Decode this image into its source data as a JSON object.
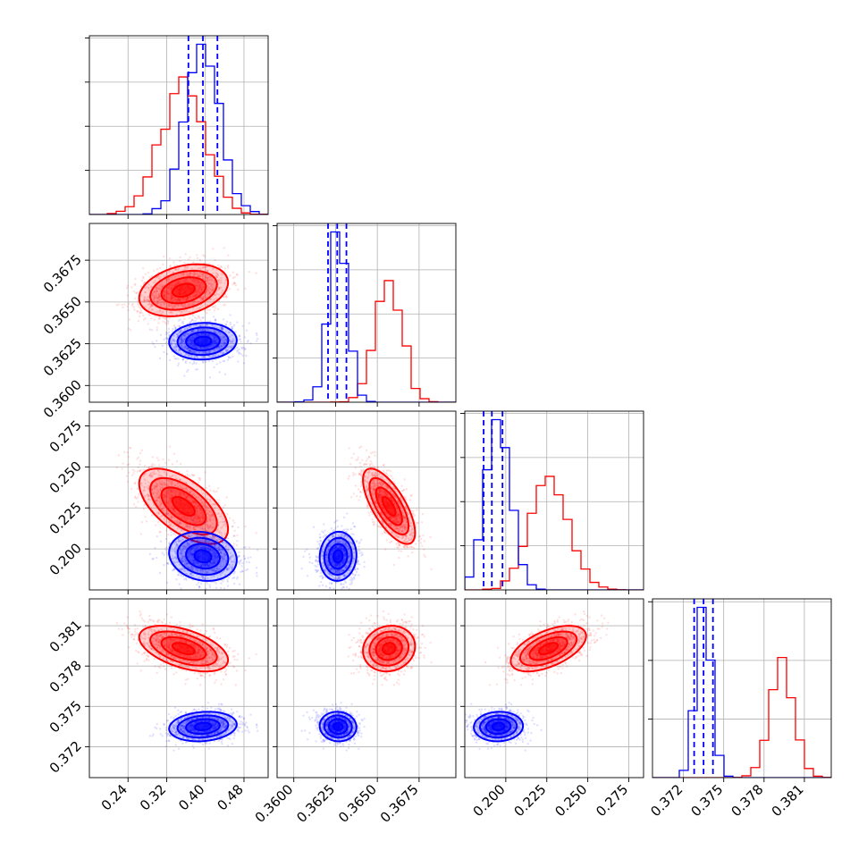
{
  "chart_data": {
    "type": "corner",
    "grid": true,
    "colors": {
      "red": "#ff0000",
      "blue": "#0000ff"
    },
    "parameters": [
      {
        "range": [
          0.16,
          0.53
        ],
        "ticks": [
          0.24,
          0.32,
          0.4,
          0.48
        ],
        "tick_labels": [
          "0.24",
          "0.32",
          "0.40",
          "0.48"
        ]
      },
      {
        "range": [
          0.359,
          0.3697
        ],
        "ticks": [
          0.36,
          0.3625,
          0.365,
          0.3675
        ],
        "tick_labels": [
          "0.3600",
          "0.3625",
          "0.3650",
          "0.3675"
        ]
      },
      {
        "range": [
          0.175,
          0.284
        ],
        "ticks": [
          0.2,
          0.225,
          0.25,
          0.275
        ],
        "tick_labels": [
          "0.200",
          "0.225",
          "0.250",
          "0.275"
        ]
      },
      {
        "range": [
          0.3697,
          0.383
        ],
        "ticks": [
          0.372,
          0.375,
          0.378,
          0.381
        ],
        "tick_labels": [
          "0.372",
          "0.375",
          "0.378",
          "0.381"
        ]
      }
    ],
    "diag_ticks": [
      4,
      4,
      4,
      3
    ],
    "series": [
      {
        "color": "red",
        "means": [
          0.355,
          0.3657,
          0.226,
          0.3793
        ],
        "sds": [
          0.046,
          0.00078,
          0.0115,
          0.00085
        ],
        "corr": [
          [
            1,
            0.3,
            -0.6,
            -0.5
          ],
          [
            0.3,
            1,
            -0.7,
            0.1
          ],
          [
            -0.6,
            -0.7,
            1,
            0.55
          ],
          [
            -0.5,
            0.1,
            0.55,
            1
          ]
        ],
        "quantiles": []
      },
      {
        "color": "blue",
        "means": [
          0.395,
          0.36265,
          0.1955,
          0.3735
        ],
        "sds": [
          0.035,
          0.00055,
          0.0075,
          0.00055
        ],
        "corr": [
          [
            1,
            0.05,
            -0.15,
            0.15
          ],
          [
            0.05,
            1,
            0.05,
            -0.05
          ],
          [
            -0.15,
            0.05,
            1,
            0.05
          ],
          [
            0.15,
            -0.05,
            0.05,
            1
          ]
        ],
        "quantiles": [
          [
            0.365,
            0.395,
            0.425
          ],
          [
            0.36205,
            0.3626,
            0.36315
          ],
          [
            0.1865,
            0.1915,
            0.198
          ],
          [
            0.3728,
            0.3735,
            0.3742
          ]
        ]
      }
    ]
  }
}
